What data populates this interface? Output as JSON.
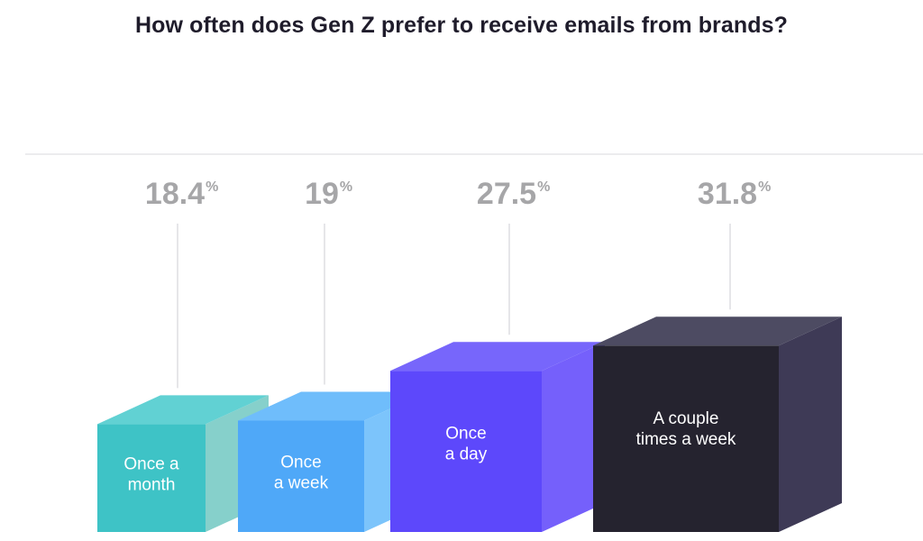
{
  "chart_data": {
    "type": "bar",
    "title": "How often does Gen Z prefer to receive emails from brands?",
    "categories": [
      [
        "Once a",
        "month"
      ],
      [
        "Once",
        "a week"
      ],
      [
        "Once",
        "a day"
      ],
      [
        "A couple",
        "times a week"
      ]
    ],
    "values": [
      18.4,
      19,
      27.5,
      31.8
    ],
    "value_labels": [
      "18.4",
      "19",
      "27.5",
      "31.8"
    ],
    "unit": "%",
    "colors": [
      {
        "front": "#3ec3c6",
        "top": "#61d1d3",
        "side": "#86d0cb"
      },
      {
        "front": "#4fa8f8",
        "top": "#6fbdfb",
        "side": "#7cc4fb"
      },
      {
        "front": "#5d48fb",
        "top": "#7766fb",
        "side": "#7560fb"
      },
      {
        "front": "#25232f",
        "top": "#4d4b62",
        "side": "#3e3a56"
      }
    ],
    "grid_color": "#e6e6e9"
  }
}
